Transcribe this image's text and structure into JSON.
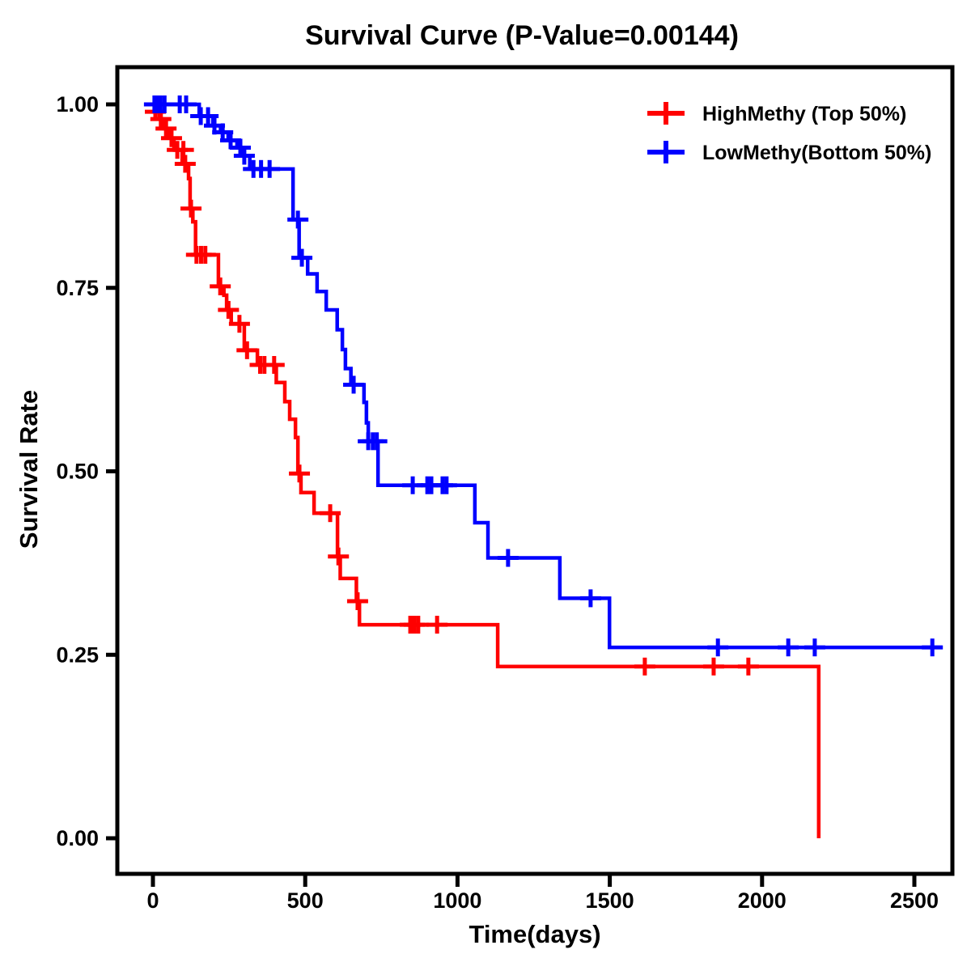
{
  "title": "Survival Curve (P-Value=0.00144)",
  "p_value": "0.00144",
  "axes": {
    "x": {
      "label": "Time(days)",
      "tick_labels": [
        "0",
        "500",
        "1000",
        "1500",
        "2000",
        "2500"
      ],
      "tick_values": [
        0,
        500,
        1000,
        1500,
        2000,
        2500
      ],
      "range": [
        0,
        2500
      ]
    },
    "y": {
      "label": "Survival Rate",
      "tick_labels": [
        "0.00",
        "0.25",
        "0.50",
        "0.75",
        "1.00"
      ],
      "tick_values": [
        0,
        0.25,
        0.5,
        0.75,
        1.0
      ],
      "range": [
        0,
        1
      ]
    }
  },
  "legend": {
    "items": [
      {
        "label": "HighMethy (Top 50%)",
        "color": "#FF0000",
        "marker": "plus-censor-icon"
      },
      {
        "label": "LowMethy(Bottom 50%)",
        "color": "#0000FF",
        "marker": "plus-censor-icon"
      }
    ]
  },
  "chart_data": {
    "type": "line",
    "subtype": "kaplan_meier_step",
    "title": "Survival Curve (P-Value=0.00144)",
    "xlabel": "Time(days)",
    "ylabel": "Survival Rate",
    "xlim": [
      0,
      2500
    ],
    "ylim": [
      0,
      1
    ],
    "grid": false,
    "legend_position": "top-right-inside",
    "series": [
      {
        "name": "HighMethy (Top 50%)",
        "color": "#FF0000",
        "end_time": 2186,
        "steps": [
          [
            0,
            1.0
          ],
          [
            10,
            0.99
          ],
          [
            21,
            0.98
          ],
          [
            35,
            0.967
          ],
          [
            50,
            0.954
          ],
          [
            69,
            0.938
          ],
          [
            96,
            0.919
          ],
          [
            117,
            0.899
          ],
          [
            122,
            0.858
          ],
          [
            131,
            0.84
          ],
          [
            140,
            0.795
          ],
          [
            215,
            0.752
          ],
          [
            233,
            0.74
          ],
          [
            242,
            0.72
          ],
          [
            257,
            0.701
          ],
          [
            300,
            0.665
          ],
          [
            343,
            0.645
          ],
          [
            405,
            0.621
          ],
          [
            433,
            0.595
          ],
          [
            449,
            0.571
          ],
          [
            468,
            0.546
          ],
          [
            476,
            0.497
          ],
          [
            486,
            0.471
          ],
          [
            529,
            0.443
          ],
          [
            606,
            0.384
          ],
          [
            615,
            0.354
          ],
          [
            668,
            0.323
          ],
          [
            678,
            0.291
          ],
          [
            1132,
            0.234
          ],
          [
            2186,
            0.0
          ]
        ],
        "censors": [
          [
            8,
            0.99
          ],
          [
            26,
            0.98
          ],
          [
            43,
            0.967
          ],
          [
            61,
            0.954
          ],
          [
            80,
            0.938
          ],
          [
            100,
            0.938
          ],
          [
            106,
            0.919
          ],
          [
            125,
            0.858
          ],
          [
            143,
            0.795
          ],
          [
            158,
            0.795
          ],
          [
            172,
            0.795
          ],
          [
            221,
            0.752
          ],
          [
            248,
            0.72
          ],
          [
            284,
            0.701
          ],
          [
            309,
            0.665
          ],
          [
            352,
            0.645
          ],
          [
            366,
            0.645
          ],
          [
            398,
            0.645
          ],
          [
            481,
            0.497
          ],
          [
            582,
            0.443
          ],
          [
            609,
            0.384
          ],
          [
            672,
            0.323
          ],
          [
            845,
            0.291
          ],
          [
            858,
            0.291
          ],
          [
            871,
            0.291
          ],
          [
            933,
            0.291
          ],
          [
            1615,
            0.234
          ],
          [
            1841,
            0.234
          ],
          [
            1955,
            0.234
          ]
        ]
      },
      {
        "name": "LowMethy(Bottom 50%)",
        "color": "#0000FF",
        "end_time": 2590,
        "steps": [
          [
            0,
            1.0
          ],
          [
            152,
            0.984
          ],
          [
            197,
            0.971
          ],
          [
            222,
            0.962
          ],
          [
            247,
            0.951
          ],
          [
            276,
            0.941
          ],
          [
            294,
            0.93
          ],
          [
            318,
            0.912
          ],
          [
            460,
            0.843
          ],
          [
            480,
            0.791
          ],
          [
            508,
            0.769
          ],
          [
            539,
            0.745
          ],
          [
            569,
            0.72
          ],
          [
            605,
            0.693
          ],
          [
            622,
            0.666
          ],
          [
            632,
            0.64
          ],
          [
            650,
            0.618
          ],
          [
            693,
            0.594
          ],
          [
            701,
            0.566
          ],
          [
            707,
            0.541
          ],
          [
            739,
            0.481
          ],
          [
            1057,
            0.43
          ],
          [
            1100,
            0.382
          ],
          [
            1336,
            0.327
          ],
          [
            1499,
            0.26
          ]
        ],
        "censors": [
          [
            5,
            1.0
          ],
          [
            15,
            1.0
          ],
          [
            25,
            1.0
          ],
          [
            38,
            1.0
          ],
          [
            88,
            1.0
          ],
          [
            109,
            1.0
          ],
          [
            157,
            0.984
          ],
          [
            181,
            0.984
          ],
          [
            202,
            0.971
          ],
          [
            229,
            0.962
          ],
          [
            255,
            0.951
          ],
          [
            287,
            0.941
          ],
          [
            300,
            0.93
          ],
          [
            330,
            0.912
          ],
          [
            355,
            0.912
          ],
          [
            383,
            0.912
          ],
          [
            476,
            0.843
          ],
          [
            489,
            0.791
          ],
          [
            659,
            0.618
          ],
          [
            707,
            0.541
          ],
          [
            722,
            0.541
          ],
          [
            735,
            0.541
          ],
          [
            853,
            0.481
          ],
          [
            901,
            0.481
          ],
          [
            914,
            0.481
          ],
          [
            951,
            0.481
          ],
          [
            964,
            0.481
          ],
          [
            1166,
            0.382
          ],
          [
            1437,
            0.327
          ],
          [
            1855,
            0.26
          ],
          [
            2086,
            0.26
          ],
          [
            2173,
            0.26
          ],
          [
            2559,
            0.26
          ]
        ]
      }
    ]
  }
}
